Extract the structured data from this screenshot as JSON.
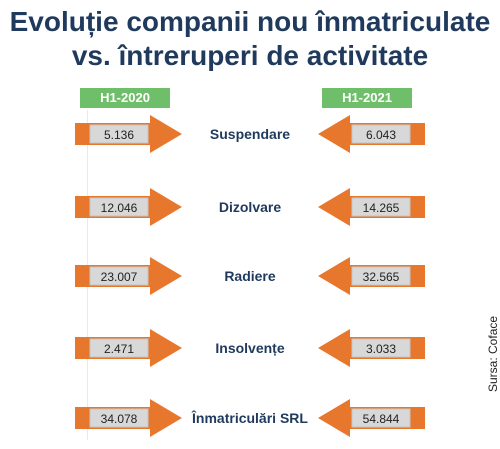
{
  "title": {
    "line1": "Evoluție companii nou înmatriculate",
    "line2": "vs. întreruperi de activitate"
  },
  "source": "Sursa: Coface",
  "colors": {
    "arrow": "#e8772e",
    "box": "#d8d8d8",
    "badge": "#6fbf6a",
    "title": "#1f3a5c"
  },
  "chart_data": {
    "type": "table",
    "columns": [
      "H1-2020",
      "H1-2021"
    ],
    "rows": [
      {
        "label": "Suspendare",
        "values": [
          "5.136",
          "6.043"
        ]
      },
      {
        "label": "Dizolvare",
        "values": [
          "12.046",
          "14.265"
        ]
      },
      {
        "label": "Radiere",
        "values": [
          "23.007",
          "32.565"
        ]
      },
      {
        "label": "Insolvențe",
        "values": [
          "2.471",
          "3.033"
        ]
      },
      {
        "label": "Înmatriculări SRL",
        "values": [
          "34.078",
          "54.844"
        ]
      }
    ]
  }
}
